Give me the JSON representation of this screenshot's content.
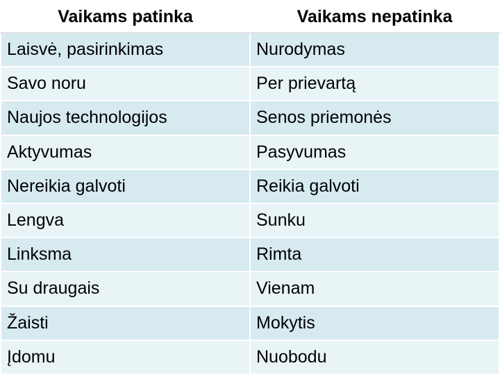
{
  "table": {
    "header": [
      "Vaikams patinka",
      "Vaikams nepatinka"
    ],
    "rows": [
      [
        "Laisvė, pasirinkimas",
        "Nurodymas"
      ],
      [
        "Savo noru",
        "Per prievartą"
      ],
      [
        "Naujos technologijos",
        "Senos priemonės"
      ],
      [
        "Aktyvumas",
        "Pasyvumas"
      ],
      [
        "Nereikia galvoti",
        "Reikia galvoti"
      ],
      [
        "Lengva",
        "Sunku"
      ],
      [
        "Linksma",
        "Rimta"
      ],
      [
        "Su draugais",
        "Vienam"
      ],
      [
        "Žaisti",
        "Mokytis"
      ],
      [
        "Įdomu",
        "Nuobodu"
      ]
    ]
  }
}
